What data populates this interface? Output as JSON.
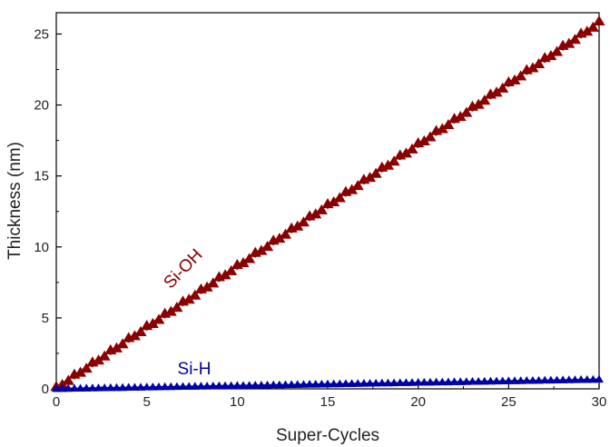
{
  "chart_data": {
    "type": "scatter",
    "title": "",
    "xlabel": "Super-Cycles",
    "ylabel": "Thickness (nm)",
    "xlim": [
      0,
      30
    ],
    "ylim": [
      0,
      26.5
    ],
    "xticks": [
      0,
      5,
      10,
      15,
      20,
      25,
      30
    ],
    "yticks": [
      0,
      5,
      10,
      15,
      20,
      25
    ],
    "grid": false,
    "legend": "none (series labeled inline)",
    "series": [
      {
        "name": "Si-OH",
        "color": "#8b0000",
        "marker": "triangle",
        "slope_nm_per_cycle": 0.858,
        "steps_per_cycle": 3,
        "step_rise": 0.3,
        "x_range": [
          0,
          30
        ],
        "y_range": [
          0,
          25.7
        ]
      },
      {
        "name": "Si-H",
        "color": "#0000a8",
        "marker": "triangle",
        "slope_nm_per_cycle": 0.0218,
        "steps_per_cycle": 3,
        "step_rise": 0.01,
        "x_range": [
          0,
          30
        ],
        "y_range": [
          0,
          0.65
        ]
      }
    ]
  }
}
